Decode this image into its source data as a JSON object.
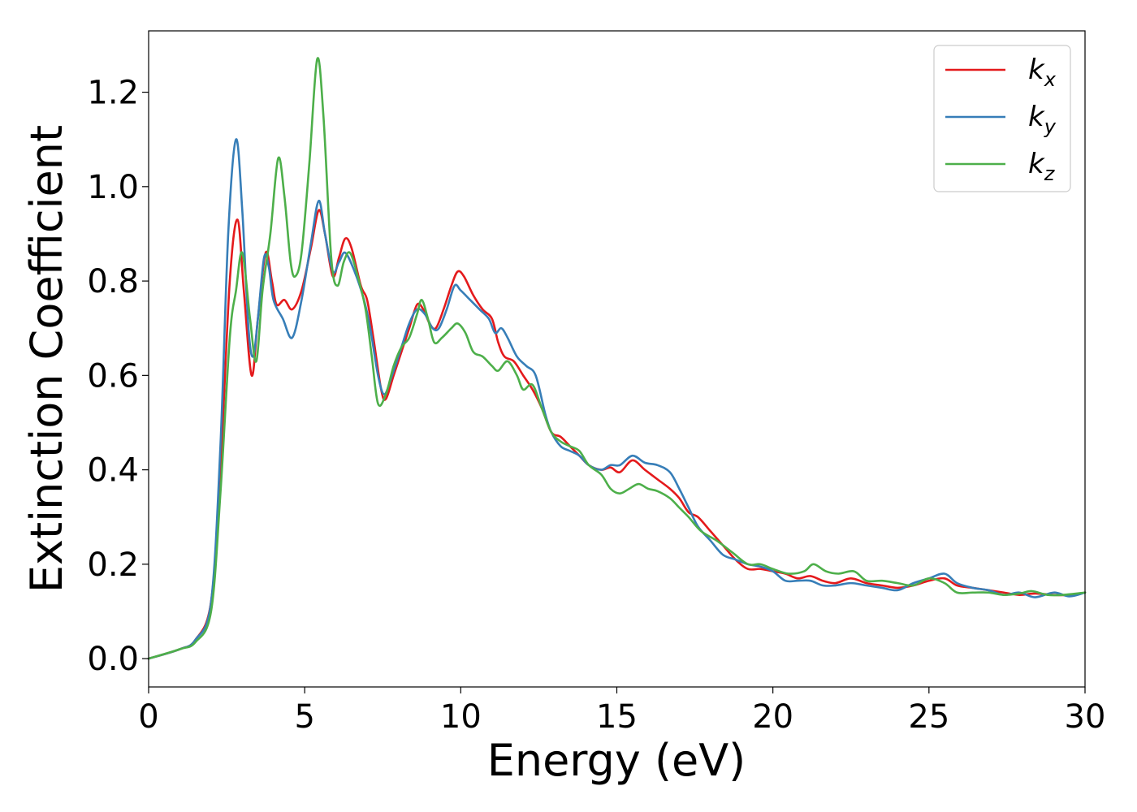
{
  "chart_data": {
    "type": "line",
    "title": "",
    "xlabel": "Energy (eV)",
    "ylabel": "Extinction Coefficient",
    "xlim": [
      0,
      30
    ],
    "ylim": [
      -0.06,
      1.33
    ],
    "xticks": [
      0,
      5,
      10,
      15,
      20,
      25,
      30
    ],
    "xtick_labels": [
      "0",
      "5",
      "10",
      "15",
      "20",
      "25",
      "30"
    ],
    "yticks": [
      0.0,
      0.2,
      0.4,
      0.6,
      0.8,
      1.0,
      1.2
    ],
    "ytick_labels": [
      "0.0",
      "0.2",
      "0.4",
      "0.6",
      "0.8",
      "1.0",
      "1.2"
    ],
    "grid": false,
    "legend_position": "top-right",
    "series": [
      {
        "name": "k_x",
        "legend_main": "k",
        "legend_sub": "x",
        "color": "#e41a1c",
        "points": [
          [
            0,
            0
          ],
          [
            1,
            0.02
          ],
          [
            1.5,
            0.04
          ],
          [
            2,
            0.12
          ],
          [
            2.3,
            0.4
          ],
          [
            2.6,
            0.8
          ],
          [
            2.85,
            0.93
          ],
          [
            3.05,
            0.78
          ],
          [
            3.3,
            0.6
          ],
          [
            3.5,
            0.72
          ],
          [
            3.75,
            0.86
          ],
          [
            3.95,
            0.8
          ],
          [
            4.1,
            0.75
          ],
          [
            4.35,
            0.76
          ],
          [
            4.6,
            0.74
          ],
          [
            4.9,
            0.78
          ],
          [
            5.2,
            0.87
          ],
          [
            5.45,
            0.95
          ],
          [
            5.65,
            0.9
          ],
          [
            5.9,
            0.81
          ],
          [
            6.1,
            0.85
          ],
          [
            6.3,
            0.89
          ],
          [
            6.5,
            0.87
          ],
          [
            6.8,
            0.79
          ],
          [
            7.0,
            0.76
          ],
          [
            7.2,
            0.68
          ],
          [
            7.45,
            0.57
          ],
          [
            7.6,
            0.55
          ],
          [
            7.85,
            0.6
          ],
          [
            8.1,
            0.65
          ],
          [
            8.35,
            0.7
          ],
          [
            8.6,
            0.75
          ],
          [
            8.8,
            0.74
          ],
          [
            9.0,
            0.71
          ],
          [
            9.2,
            0.7
          ],
          [
            9.45,
            0.74
          ],
          [
            9.7,
            0.79
          ],
          [
            9.9,
            0.82
          ],
          [
            10.1,
            0.81
          ],
          [
            10.4,
            0.77
          ],
          [
            10.7,
            0.74
          ],
          [
            11.0,
            0.72
          ],
          [
            11.2,
            0.67
          ],
          [
            11.4,
            0.64
          ],
          [
            11.7,
            0.63
          ],
          [
            12.0,
            0.6
          ],
          [
            12.3,
            0.57
          ],
          [
            12.6,
            0.53
          ],
          [
            12.9,
            0.48
          ],
          [
            13.2,
            0.47
          ],
          [
            13.5,
            0.45
          ],
          [
            13.8,
            0.43
          ],
          [
            14.1,
            0.41
          ],
          [
            14.5,
            0.4
          ],
          [
            14.8,
            0.405
          ],
          [
            15.1,
            0.395
          ],
          [
            15.5,
            0.42
          ],
          [
            15.9,
            0.4
          ],
          [
            16.3,
            0.38
          ],
          [
            16.7,
            0.36
          ],
          [
            17.0,
            0.34
          ],
          [
            17.3,
            0.31
          ],
          [
            17.6,
            0.3
          ],
          [
            18.0,
            0.27
          ],
          [
            18.4,
            0.24
          ],
          [
            18.8,
            0.21
          ],
          [
            19.2,
            0.19
          ],
          [
            19.6,
            0.19
          ],
          [
            20.0,
            0.185
          ],
          [
            20.4,
            0.18
          ],
          [
            20.8,
            0.17
          ],
          [
            21.2,
            0.175
          ],
          [
            21.6,
            0.165
          ],
          [
            22.0,
            0.16
          ],
          [
            22.5,
            0.17
          ],
          [
            23.0,
            0.16
          ],
          [
            23.5,
            0.155
          ],
          [
            24.0,
            0.15
          ],
          [
            24.5,
            0.155
          ],
          [
            25.0,
            0.165
          ],
          [
            25.5,
            0.17
          ],
          [
            25.9,
            0.155
          ],
          [
            26.4,
            0.15
          ],
          [
            26.9,
            0.145
          ],
          [
            27.4,
            0.14
          ],
          [
            27.9,
            0.135
          ],
          [
            28.4,
            0.138
          ],
          [
            29.0,
            0.135
          ],
          [
            29.5,
            0.135
          ],
          [
            30.0,
            0.14
          ]
        ]
      },
      {
        "name": "k_y",
        "legend_main": "k",
        "legend_sub": "y",
        "color": "#377eb8",
        "points": [
          [
            0,
            0
          ],
          [
            1,
            0.02
          ],
          [
            1.5,
            0.04
          ],
          [
            2,
            0.12
          ],
          [
            2.3,
            0.45
          ],
          [
            2.55,
            0.9
          ],
          [
            2.8,
            1.1
          ],
          [
            3.0,
            0.95
          ],
          [
            3.2,
            0.7
          ],
          [
            3.35,
            0.64
          ],
          [
            3.5,
            0.72
          ],
          [
            3.7,
            0.85
          ],
          [
            3.85,
            0.83
          ],
          [
            4.0,
            0.76
          ],
          [
            4.3,
            0.72
          ],
          [
            4.6,
            0.68
          ],
          [
            4.9,
            0.76
          ],
          [
            5.2,
            0.88
          ],
          [
            5.45,
            0.97
          ],
          [
            5.65,
            0.9
          ],
          [
            5.9,
            0.82
          ],
          [
            6.1,
            0.84
          ],
          [
            6.3,
            0.86
          ],
          [
            6.6,
            0.82
          ],
          [
            6.9,
            0.76
          ],
          [
            7.1,
            0.7
          ],
          [
            7.35,
            0.6
          ],
          [
            7.55,
            0.56
          ],
          [
            7.8,
            0.6
          ],
          [
            8.1,
            0.66
          ],
          [
            8.35,
            0.71
          ],
          [
            8.6,
            0.74
          ],
          [
            8.85,
            0.73
          ],
          [
            9.1,
            0.7
          ],
          [
            9.3,
            0.7
          ],
          [
            9.55,
            0.74
          ],
          [
            9.8,
            0.79
          ],
          [
            10.0,
            0.78
          ],
          [
            10.3,
            0.76
          ],
          [
            10.6,
            0.74
          ],
          [
            10.9,
            0.72
          ],
          [
            11.1,
            0.69
          ],
          [
            11.3,
            0.7
          ],
          [
            11.5,
            0.68
          ],
          [
            11.8,
            0.64
          ],
          [
            12.1,
            0.62
          ],
          [
            12.4,
            0.6
          ],
          [
            12.7,
            0.52
          ],
          [
            12.9,
            0.48
          ],
          [
            13.2,
            0.45
          ],
          [
            13.5,
            0.44
          ],
          [
            13.8,
            0.43
          ],
          [
            14.1,
            0.41
          ],
          [
            14.5,
            0.4
          ],
          [
            14.8,
            0.41
          ],
          [
            15.1,
            0.41
          ],
          [
            15.5,
            0.43
          ],
          [
            15.9,
            0.415
          ],
          [
            16.3,
            0.41
          ],
          [
            16.7,
            0.395
          ],
          [
            17.0,
            0.36
          ],
          [
            17.3,
            0.32
          ],
          [
            17.6,
            0.28
          ],
          [
            18.0,
            0.25
          ],
          [
            18.4,
            0.22
          ],
          [
            18.8,
            0.21
          ],
          [
            19.2,
            0.2
          ],
          [
            19.6,
            0.195
          ],
          [
            20.0,
            0.185
          ],
          [
            20.4,
            0.165
          ],
          [
            20.8,
            0.165
          ],
          [
            21.2,
            0.165
          ],
          [
            21.6,
            0.155
          ],
          [
            22.0,
            0.155
          ],
          [
            22.5,
            0.16
          ],
          [
            23.0,
            0.155
          ],
          [
            23.5,
            0.15
          ],
          [
            24.0,
            0.145
          ],
          [
            24.5,
            0.16
          ],
          [
            25.0,
            0.17
          ],
          [
            25.5,
            0.18
          ],
          [
            25.9,
            0.16
          ],
          [
            26.4,
            0.15
          ],
          [
            26.9,
            0.145
          ],
          [
            27.4,
            0.135
          ],
          [
            27.9,
            0.14
          ],
          [
            28.4,
            0.13
          ],
          [
            29.0,
            0.14
          ],
          [
            29.5,
            0.132
          ],
          [
            30.0,
            0.14
          ]
        ]
      },
      {
        "name": "k_z",
        "legend_main": "k",
        "legend_sub": "z",
        "color": "#4daf4a",
        "points": [
          [
            0,
            0
          ],
          [
            1,
            0.02
          ],
          [
            1.5,
            0.035
          ],
          [
            2,
            0.1
          ],
          [
            2.3,
            0.35
          ],
          [
            2.6,
            0.68
          ],
          [
            2.8,
            0.78
          ],
          [
            3.0,
            0.86
          ],
          [
            3.25,
            0.72
          ],
          [
            3.45,
            0.63
          ],
          [
            3.65,
            0.78
          ],
          [
            3.9,
            0.9
          ],
          [
            4.15,
            1.06
          ],
          [
            4.35,
            0.98
          ],
          [
            4.55,
            0.84
          ],
          [
            4.7,
            0.81
          ],
          [
            4.9,
            0.86
          ],
          [
            5.15,
            1.05
          ],
          [
            5.4,
            1.27
          ],
          [
            5.6,
            1.15
          ],
          [
            5.85,
            0.85
          ],
          [
            6.05,
            0.79
          ],
          [
            6.25,
            0.84
          ],
          [
            6.45,
            0.86
          ],
          [
            6.7,
            0.81
          ],
          [
            6.95,
            0.74
          ],
          [
            7.15,
            0.64
          ],
          [
            7.35,
            0.54
          ],
          [
            7.6,
            0.56
          ],
          [
            7.85,
            0.62
          ],
          [
            8.1,
            0.66
          ],
          [
            8.35,
            0.68
          ],
          [
            8.6,
            0.73
          ],
          [
            8.75,
            0.76
          ],
          [
            8.95,
            0.72
          ],
          [
            9.15,
            0.67
          ],
          [
            9.4,
            0.68
          ],
          [
            9.7,
            0.7
          ],
          [
            9.9,
            0.71
          ],
          [
            10.15,
            0.69
          ],
          [
            10.4,
            0.65
          ],
          [
            10.7,
            0.64
          ],
          [
            11.0,
            0.62
          ],
          [
            11.2,
            0.61
          ],
          [
            11.5,
            0.63
          ],
          [
            11.8,
            0.6
          ],
          [
            12.0,
            0.57
          ],
          [
            12.3,
            0.58
          ],
          [
            12.6,
            0.53
          ],
          [
            12.9,
            0.48
          ],
          [
            13.2,
            0.46
          ],
          [
            13.5,
            0.45
          ],
          [
            13.8,
            0.44
          ],
          [
            14.1,
            0.41
          ],
          [
            14.5,
            0.39
          ],
          [
            14.8,
            0.36
          ],
          [
            15.1,
            0.35
          ],
          [
            15.4,
            0.36
          ],
          [
            15.7,
            0.37
          ],
          [
            16.0,
            0.36
          ],
          [
            16.3,
            0.355
          ],
          [
            16.7,
            0.34
          ],
          [
            17.0,
            0.32
          ],
          [
            17.3,
            0.3
          ],
          [
            17.7,
            0.27
          ],
          [
            18.2,
            0.25
          ],
          [
            18.7,
            0.225
          ],
          [
            19.2,
            0.2
          ],
          [
            19.6,
            0.2
          ],
          [
            20.0,
            0.19
          ],
          [
            20.5,
            0.18
          ],
          [
            21.0,
            0.185
          ],
          [
            21.3,
            0.2
          ],
          [
            21.7,
            0.185
          ],
          [
            22.1,
            0.18
          ],
          [
            22.6,
            0.185
          ],
          [
            23.0,
            0.165
          ],
          [
            23.5,
            0.165
          ],
          [
            24.0,
            0.16
          ],
          [
            24.5,
            0.155
          ],
          [
            25.0,
            0.17
          ],
          [
            25.5,
            0.16
          ],
          [
            25.9,
            0.14
          ],
          [
            26.4,
            0.14
          ],
          [
            26.9,
            0.14
          ],
          [
            27.4,
            0.135
          ],
          [
            27.9,
            0.138
          ],
          [
            28.3,
            0.143
          ],
          [
            28.8,
            0.135
          ],
          [
            29.3,
            0.135
          ],
          [
            30.0,
            0.14
          ]
        ]
      }
    ]
  }
}
